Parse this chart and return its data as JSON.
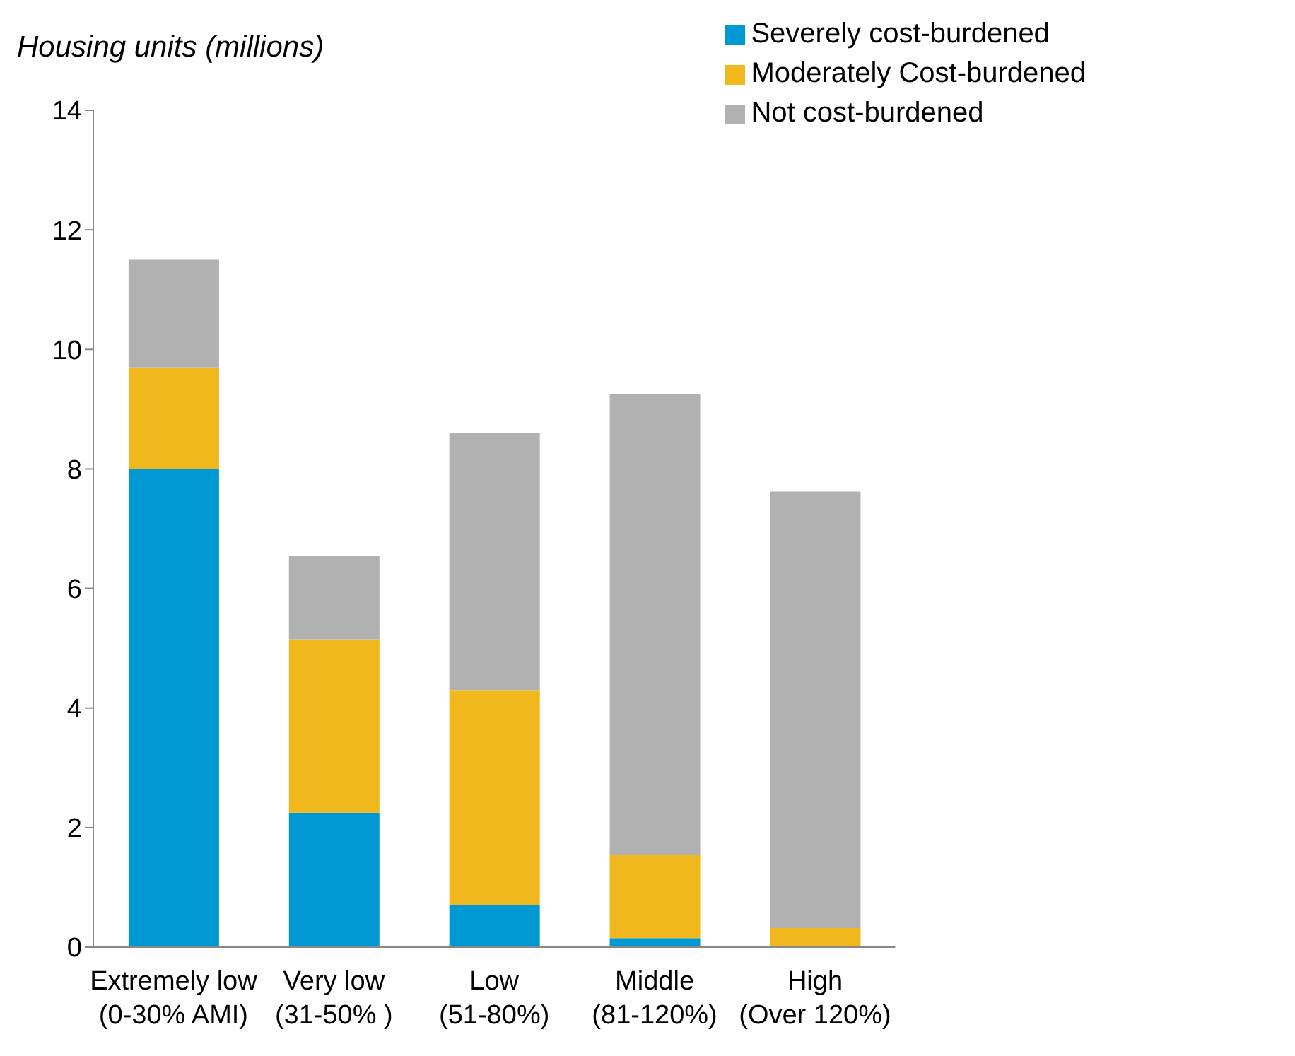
{
  "chart_data": {
    "type": "bar",
    "ylabel": "Housing units (millions)",
    "stacked": true,
    "categories": [
      "Extremely low\n(0-30% AMI)",
      "Very low\n(31-50% )",
      "Low\n(51-80%)",
      "Middle\n(81-120%)",
      "High\n(Over 120%)"
    ],
    "series": [
      {
        "name": "Severely cost-burdened",
        "color": "#0099d4",
        "values": [
          8.0,
          2.25,
          0.7,
          0.15,
          0.02
        ]
      },
      {
        "name": "Moderately Cost-burdened",
        "color": "#f0b81c",
        "values": [
          1.7,
          2.9,
          3.6,
          1.4,
          0.3
        ]
      },
      {
        "name": "Not cost-burdened",
        "color": "#b0b1b0",
        "values": [
          1.8,
          1.4,
          4.3,
          7.7,
          7.3
        ]
      }
    ],
    "ylim": [
      0,
      14
    ],
    "yticks": [
      0,
      2,
      4,
      6,
      8,
      10,
      12,
      14
    ],
    "grid": false,
    "legend": "top right"
  }
}
